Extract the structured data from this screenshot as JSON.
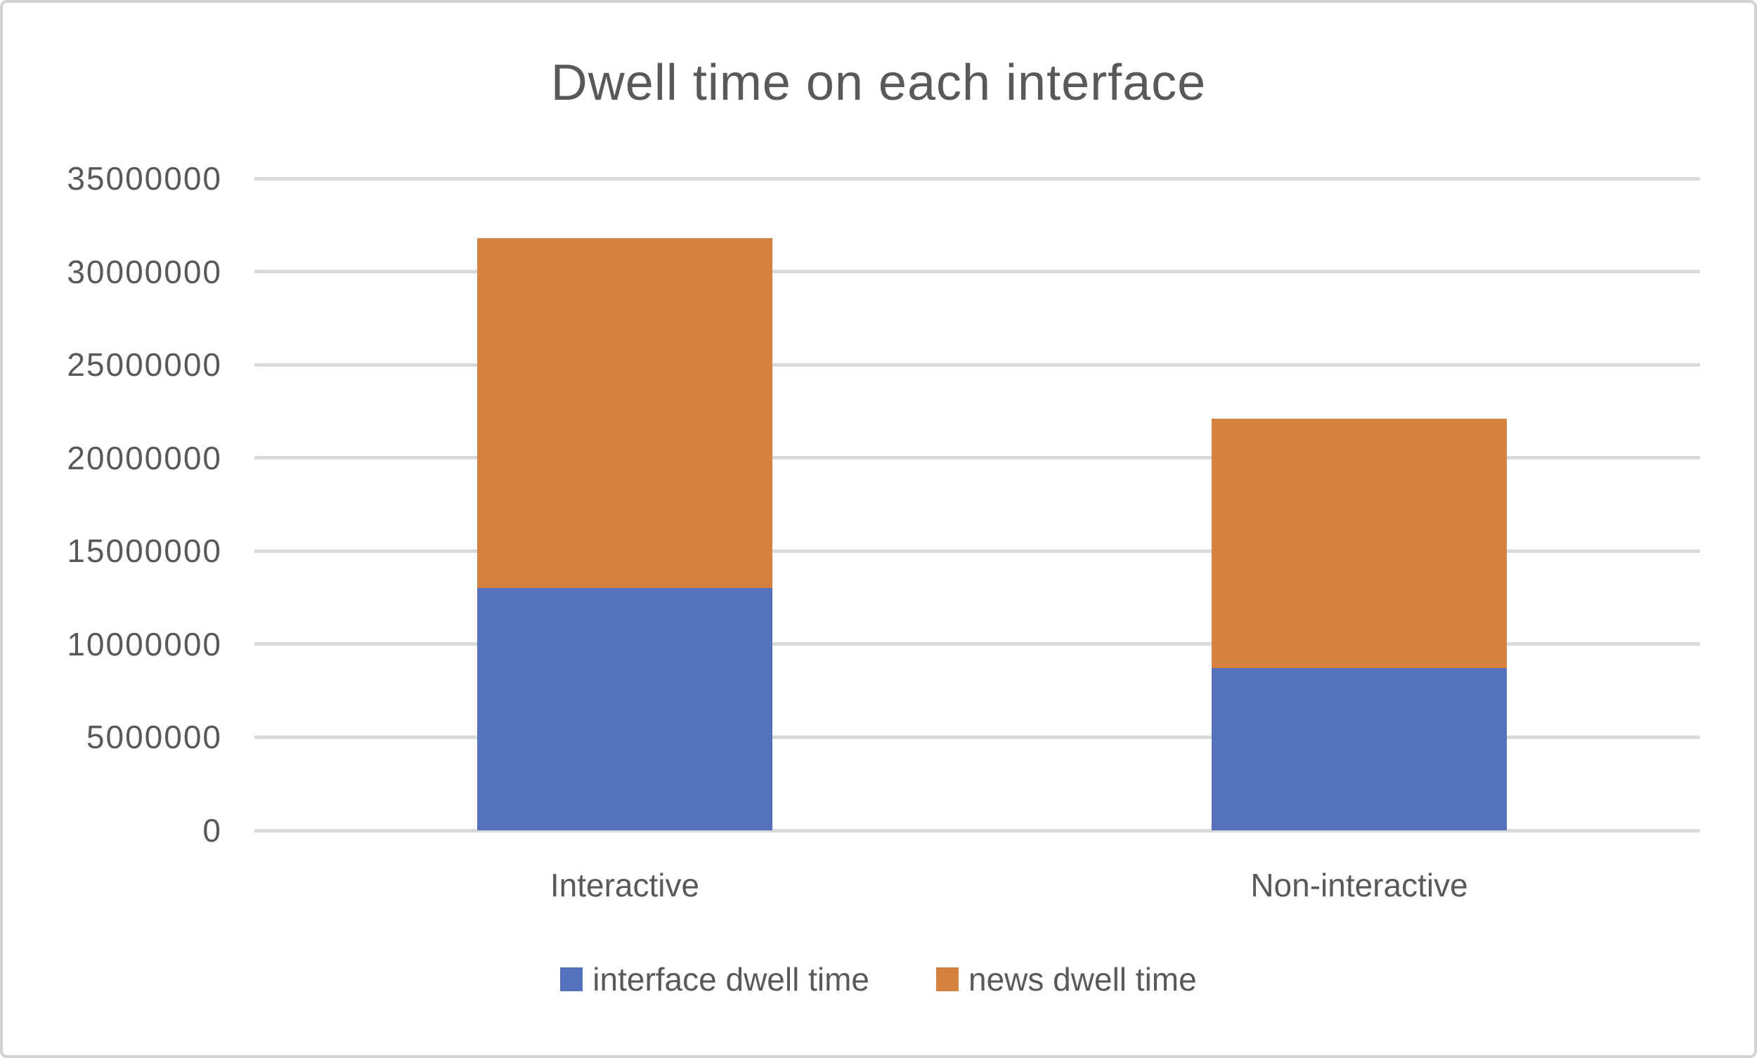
{
  "chart_data": {
    "type": "bar",
    "stacked": true,
    "title": "Dwell time on each interface",
    "categories": [
      "Interactive",
      "Non-interactive"
    ],
    "series": [
      {
        "name": "interface dwell time",
        "color": "#5571BE",
        "values": [
          13000000,
          8700000
        ]
      },
      {
        "name": "news dwell time",
        "color": "#D5803C",
        "values": [
          18800000,
          13400000
        ]
      }
    ],
    "stacked_totals": [
      31800000,
      22100000
    ],
    "xlabel": "",
    "ylabel": "",
    "ylim": [
      0,
      35000000
    ],
    "ytick_step": 5000000,
    "ytick_labels": [
      "0",
      "5000000",
      "10000000",
      "15000000",
      "20000000",
      "25000000",
      "30000000",
      "35000000"
    ],
    "grid": true,
    "legend_position": "bottom"
  },
  "colors": {
    "gridline": "#D9D9D9",
    "text": "#595959",
    "frame_border": "#D2D2D2",
    "background": "#FFFFFF"
  }
}
